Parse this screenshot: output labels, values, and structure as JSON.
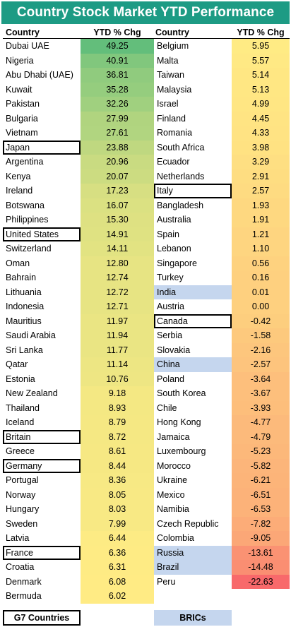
{
  "title": "Country Stock Market YTD Performance",
  "headers": {
    "country": "Country",
    "value": "YTD % Chg"
  },
  "legend": {
    "g7": "G7 Countries",
    "brics": "BRICs"
  },
  "colors": {
    "title_bg": "#1d9b84",
    "max": "#63be7b",
    "mid": "#ffeb84",
    "min": "#f8696b",
    "bric": "#c5d6ee"
  },
  "chart_data": {
    "type": "table",
    "title": "Country Stock Market YTD Performance",
    "columns": [
      "Country",
      "YTD % Chg"
    ],
    "left": [
      {
        "country": "Dubai UAE",
        "value": "49.25"
      },
      {
        "country": "Nigeria",
        "value": "40.91"
      },
      {
        "country": "Abu Dhabi (UAE)",
        "value": "36.81"
      },
      {
        "country": "Kuwait",
        "value": "35.28"
      },
      {
        "country": "Pakistan",
        "value": "32.26"
      },
      {
        "country": "Bulgaria",
        "value": "27.99"
      },
      {
        "country": "Vietnam",
        "value": "27.61"
      },
      {
        "country": "Japan",
        "value": "23.88",
        "group": "G7"
      },
      {
        "country": "Argentina",
        "value": "20.96"
      },
      {
        "country": "Kenya",
        "value": "20.07"
      },
      {
        "country": "Ireland",
        "value": "17.23"
      },
      {
        "country": "Botswana",
        "value": "16.07"
      },
      {
        "country": "Philippines",
        "value": "15.30"
      },
      {
        "country": "United States",
        "value": "14.91",
        "group": "G7"
      },
      {
        "country": "Switzerland",
        "value": "14.11"
      },
      {
        "country": "Oman",
        "value": "12.80"
      },
      {
        "country": "Bahrain",
        "value": "12.74"
      },
      {
        "country": "Lithuania",
        "value": "12.72"
      },
      {
        "country": "Indonesia",
        "value": "12.71"
      },
      {
        "country": "Mauritius",
        "value": "11.97"
      },
      {
        "country": "Saudi Arabia",
        "value": "11.94"
      },
      {
        "country": "Sri Lanka",
        "value": "11.77"
      },
      {
        "country": "Qatar",
        "value": "11.14"
      },
      {
        "country": "Estonia",
        "value": "10.76"
      },
      {
        "country": "New Zealand",
        "value": "9.18"
      },
      {
        "country": "Thailand",
        "value": "8.93"
      },
      {
        "country": "Iceland",
        "value": "8.79"
      },
      {
        "country": "Britain",
        "value": "8.72",
        "group": "G7"
      },
      {
        "country": "Greece",
        "value": "8.61"
      },
      {
        "country": "Germany",
        "value": "8.44",
        "group": "G7"
      },
      {
        "country": "Portugal",
        "value": "8.36"
      },
      {
        "country": "Norway",
        "value": "8.05"
      },
      {
        "country": "Hungary",
        "value": "8.03"
      },
      {
        "country": "Sweden",
        "value": "7.99"
      },
      {
        "country": "Latvia",
        "value": "6.44"
      },
      {
        "country": "France",
        "value": "6.36",
        "group": "G7"
      },
      {
        "country": "Croatia",
        "value": "6.31"
      },
      {
        "country": "Denmark",
        "value": "6.08"
      },
      {
        "country": "Bermuda",
        "value": "6.02"
      }
    ],
    "right": [
      {
        "country": "Belgium",
        "value": "5.95"
      },
      {
        "country": "Malta",
        "value": "5.57"
      },
      {
        "country": "Taiwan",
        "value": "5.14"
      },
      {
        "country": "Malaysia",
        "value": "5.13"
      },
      {
        "country": "Israel",
        "value": "4.99"
      },
      {
        "country": "Finland",
        "value": "4.45"
      },
      {
        "country": "Romania",
        "value": "4.33"
      },
      {
        "country": "South Africa",
        "value": "3.98"
      },
      {
        "country": "Ecuador",
        "value": "3.29"
      },
      {
        "country": "Netherlands",
        "value": "2.91"
      },
      {
        "country": "Italy",
        "value": "2.57",
        "group": "G7"
      },
      {
        "country": "Bangladesh",
        "value": "1.93"
      },
      {
        "country": "Australia",
        "value": "1.91"
      },
      {
        "country": "Spain",
        "value": "1.21"
      },
      {
        "country": "Lebanon",
        "value": "1.10"
      },
      {
        "country": "Singapore",
        "value": "0.56"
      },
      {
        "country": "Turkey",
        "value": "0.16"
      },
      {
        "country": "India",
        "value": "0.01",
        "group": "BRIC"
      },
      {
        "country": "Austria",
        "value": "0.00"
      },
      {
        "country": "Canada",
        "value": "-0.42",
        "group": "G7"
      },
      {
        "country": "Serbia",
        "value": "-1.58"
      },
      {
        "country": "Slovakia",
        "value": "-2.16"
      },
      {
        "country": "China",
        "value": "-2.57",
        "group": "BRIC"
      },
      {
        "country": "Poland",
        "value": "-3.64"
      },
      {
        "country": "South Korea",
        "value": "-3.67"
      },
      {
        "country": "Chile",
        "value": "-3.93"
      },
      {
        "country": "Hong Kong",
        "value": "-4.77"
      },
      {
        "country": "Jamaica",
        "value": "-4.79"
      },
      {
        "country": "Luxembourg",
        "value": "-5.23"
      },
      {
        "country": "Morocco",
        "value": "-5.82"
      },
      {
        "country": "Ukraine",
        "value": "-6.21"
      },
      {
        "country": "Mexico",
        "value": "-6.51"
      },
      {
        "country": "Namibia",
        "value": "-6.53"
      },
      {
        "country": "Czech Republic",
        "value": "-7.82"
      },
      {
        "country": "Colombia",
        "value": "-9.05"
      },
      {
        "country": "Russia",
        "value": "-13.61",
        "group": "BRIC"
      },
      {
        "country": "Brazil",
        "value": "-14.48",
        "group": "BRIC"
      },
      {
        "country": "Peru",
        "value": "-22.63"
      }
    ]
  }
}
